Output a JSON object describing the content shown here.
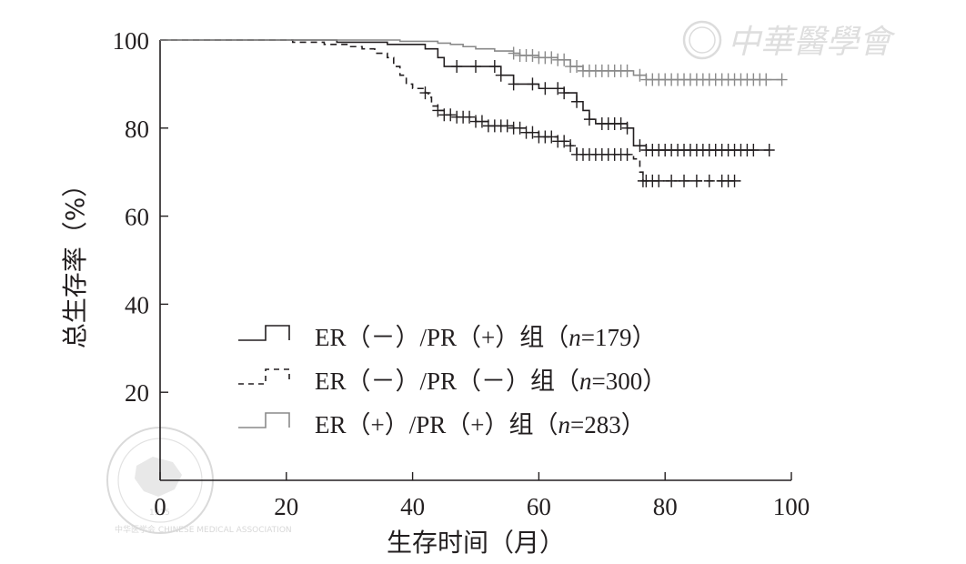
{
  "watermark": {
    "publisher": "中華醫學會",
    "seal_text": "中华医学会 CHINESE MEDICAL ASSOCIATION",
    "seal_year": "1915"
  },
  "chart_data": {
    "type": "line",
    "title": "",
    "xlabel": "生存时间（月）",
    "ylabel": "总生存率（%）",
    "xlim": [
      0,
      100
    ],
    "ylim": [
      0,
      100
    ],
    "xticks": [
      "0",
      "20",
      "40",
      "60",
      "80",
      "100"
    ],
    "yticks": [
      "0",
      "20",
      "40",
      "60",
      "80",
      "100"
    ],
    "grid": false,
    "legend_position": "lower-left",
    "series": [
      {
        "name": "ER（－）/PR（+）组（n=179）",
        "legend": {
          "prefix": "ER（－）/PR（+）组（",
          "italic": "n",
          "suffix": "=179）"
        },
        "color": "#231f20",
        "style": "solid",
        "steps": [
          [
            0,
            100
          ],
          [
            18,
            100
          ],
          [
            28,
            99.5
          ],
          [
            36,
            99
          ],
          [
            42,
            98
          ],
          [
            44,
            96
          ],
          [
            45,
            94
          ],
          [
            53,
            94
          ],
          [
            54,
            92
          ],
          [
            56,
            90
          ],
          [
            60,
            89
          ],
          [
            64,
            88
          ],
          [
            66,
            86
          ],
          [
            67,
            84
          ],
          [
            68,
            82
          ],
          [
            69,
            81
          ],
          [
            74,
            80
          ],
          [
            75,
            76
          ],
          [
            77,
            75
          ],
          [
            96.5,
            75
          ]
        ],
        "censor": [
          47,
          50,
          53,
          54,
          56,
          59,
          61,
          63,
          64,
          66,
          68,
          70,
          71,
          72,
          73,
          74,
          76,
          77,
          78,
          79,
          80,
          81,
          82,
          83,
          84,
          85,
          86,
          87,
          88,
          89,
          90,
          91,
          92,
          93,
          94,
          96.5
        ]
      },
      {
        "name": "ER（－）/PR（－）组（n=300）",
        "legend": {
          "prefix": "ER（－）/PR（－）组（",
          "italic": "n",
          "suffix": "=300）"
        },
        "color": "#231f20",
        "style": "dashed",
        "steps": [
          [
            0,
            100
          ],
          [
            18,
            100
          ],
          [
            21,
            99.5
          ],
          [
            26,
            99
          ],
          [
            30,
            98.5
          ],
          [
            32,
            98
          ],
          [
            34,
            97
          ],
          [
            36,
            96
          ],
          [
            37,
            94
          ],
          [
            38,
            92
          ],
          [
            39,
            90
          ],
          [
            40,
            89
          ],
          [
            42,
            88
          ],
          [
            42.5,
            87
          ],
          [
            43,
            85
          ],
          [
            44,
            84
          ],
          [
            45,
            83
          ],
          [
            47,
            82.5
          ],
          [
            50,
            81.5
          ],
          [
            52,
            80.5
          ],
          [
            56,
            80
          ],
          [
            58,
            79
          ],
          [
            60,
            78
          ],
          [
            63,
            77
          ],
          [
            65,
            76
          ],
          [
            66,
            74
          ],
          [
            75,
            73
          ],
          [
            76,
            70
          ],
          [
            76.5,
            68
          ],
          [
            92,
            68
          ]
        ],
        "censor": [
          42,
          44,
          45,
          46,
          47,
          48,
          49,
          50,
          51,
          52,
          53,
          54,
          55,
          56,
          57,
          58,
          59,
          60,
          61,
          62,
          63,
          64,
          65,
          66,
          67,
          68,
          69,
          70,
          71,
          72,
          73,
          74,
          76.5,
          77,
          78,
          79,
          81,
          83,
          85,
          87,
          89,
          90,
          91
        ]
      },
      {
        "name": "ER（+）/PR（+）组（n=283）",
        "legend": {
          "prefix": "ER（+）/PR（+）组（",
          "italic": "n",
          "suffix": "=283）"
        },
        "color": "#8a8a8a",
        "style": "solid",
        "steps": [
          [
            0,
            100
          ],
          [
            30,
            100
          ],
          [
            38,
            99.7
          ],
          [
            44,
            99.3
          ],
          [
            46,
            99
          ],
          [
            48,
            98.5
          ],
          [
            50,
            98
          ],
          [
            53,
            97.5
          ],
          [
            56,
            97
          ],
          [
            57,
            96.5
          ],
          [
            60,
            96
          ],
          [
            63,
            95.5
          ],
          [
            65,
            94
          ],
          [
            67,
            93
          ],
          [
            75,
            92
          ],
          [
            77,
            91
          ],
          [
            98.5,
            91
          ]
        ],
        "censor": [
          56,
          57,
          58,
          59,
          60,
          61,
          62,
          63,
          64,
          65,
          66,
          67,
          68,
          69,
          70,
          71,
          72,
          73,
          74,
          76,
          77,
          78,
          79,
          80,
          81,
          82,
          83,
          84,
          85,
          86,
          87,
          88,
          89,
          90,
          91,
          92,
          93,
          94,
          95,
          96,
          98.5
        ]
      }
    ]
  }
}
